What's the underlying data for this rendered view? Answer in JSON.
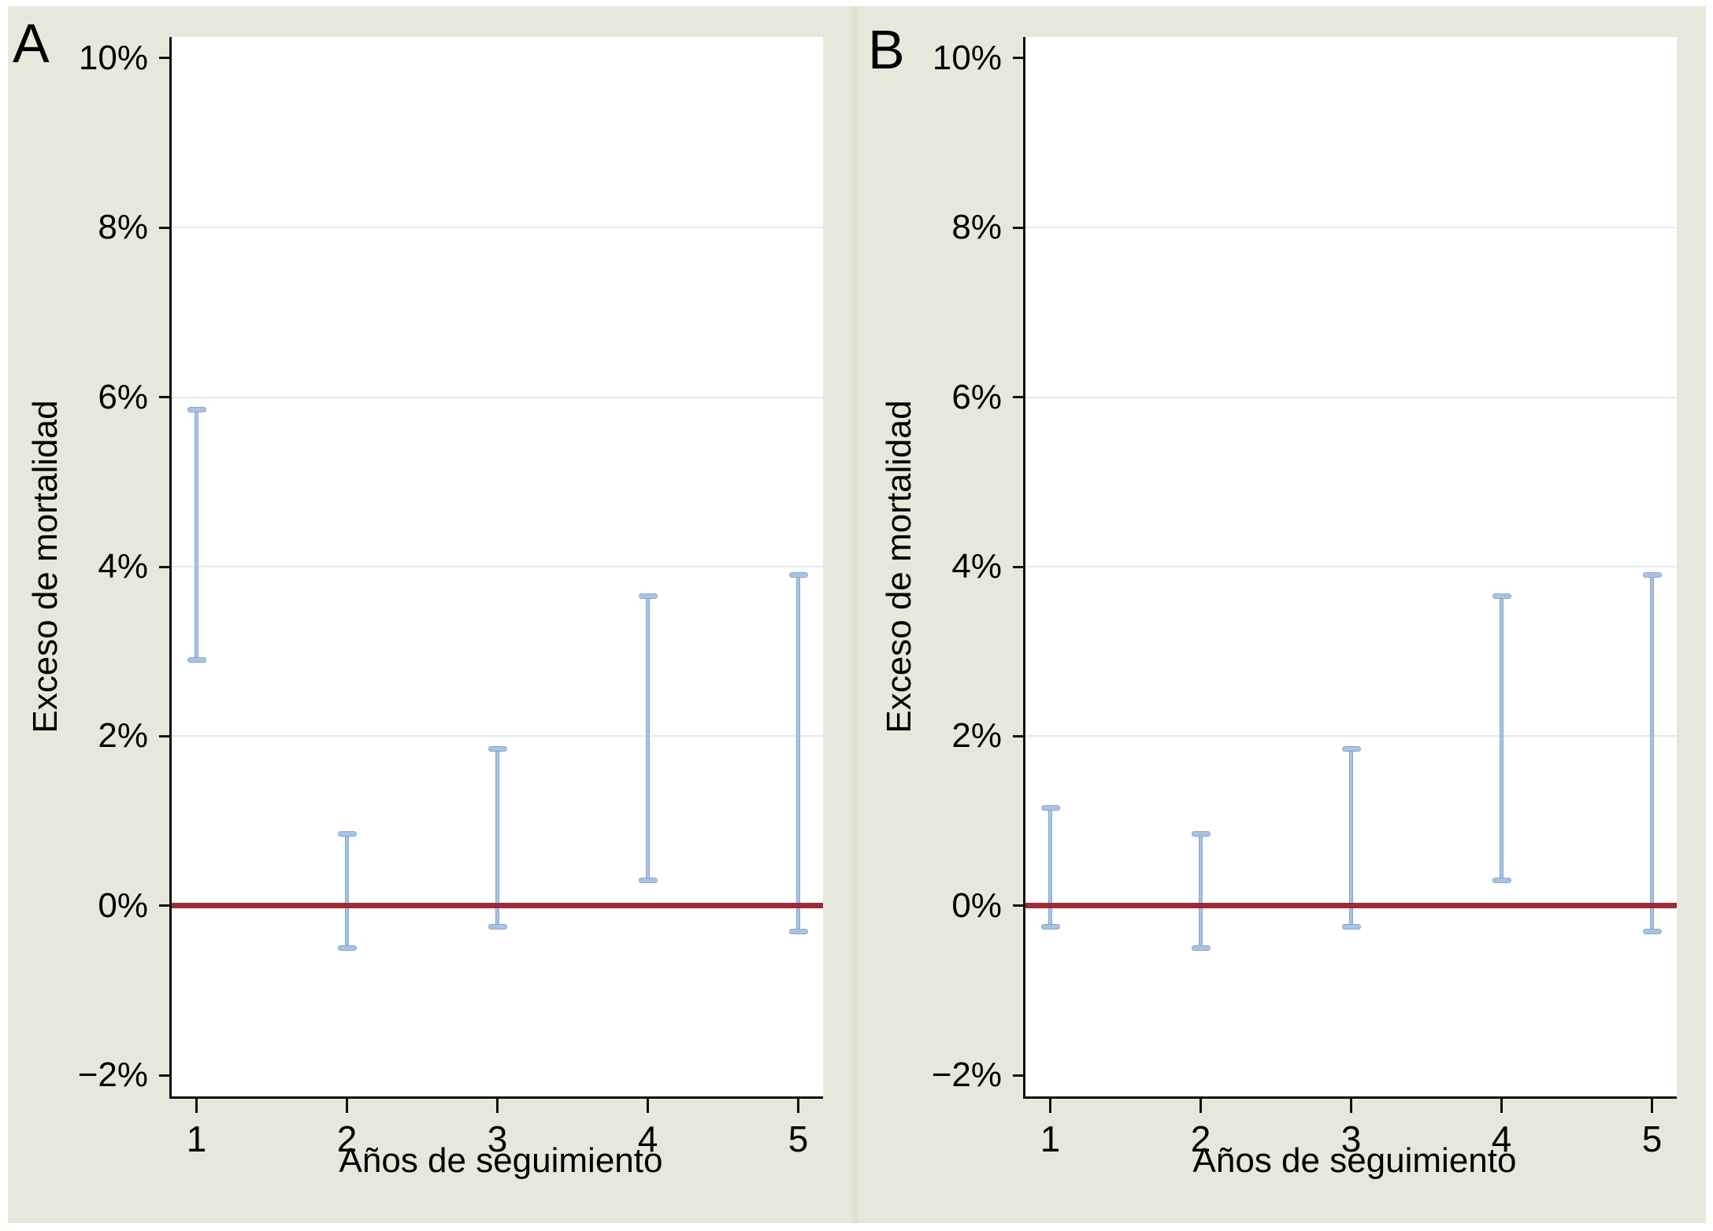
{
  "figure": {
    "background_color": "#e5e8da",
    "plot_background": "#ffffff",
    "divider_color": "#dde1cd",
    "grid_color": "#e1ebf1",
    "axis_color": "#111111",
    "error_bar_color": "#aac3e2",
    "error_bar_edge_color": "#87a7d0",
    "reference_line_color": "#9b2c3a"
  },
  "chart_data": [
    {
      "type": "errorbar",
      "panel_label": "A",
      "xlabel": "Años de seguimiento",
      "ylabel": "Exceso de mortalidad",
      "x": [
        1,
        2,
        3,
        4,
        5
      ],
      "xtick_labels": [
        "1",
        "2",
        "3",
        "4",
        "5"
      ],
      "intervals": [
        {
          "x": 1,
          "low": 2.9,
          "high": 5.85
        },
        {
          "x": 2,
          "low": -0.5,
          "high": 0.85
        },
        {
          "x": 3,
          "low": -0.25,
          "high": 1.85
        },
        {
          "x": 4,
          "low": 0.3,
          "high": 3.65
        },
        {
          "x": 5,
          "low": -0.3,
          "high": 3.9
        }
      ],
      "ytick_values": [
        10,
        8,
        6,
        4,
        2,
        0,
        -2
      ],
      "ytick_labels": [
        "10%",
        "8%",
        "6%",
        "4%",
        "2%",
        "0%",
        "−2%"
      ],
      "grid_values": [
        8,
        6,
        4,
        2
      ],
      "ylim": [
        -2.25,
        10.25
      ],
      "reference_line_y": 0,
      "legend": "none",
      "grid": "horizontal"
    },
    {
      "type": "errorbar",
      "panel_label": "B",
      "xlabel": "Años de seguimiento",
      "ylabel": "Exceso de mortalidad",
      "x": [
        1,
        2,
        3,
        4,
        5
      ],
      "xtick_labels": [
        "1",
        "2",
        "3",
        "4",
        "5"
      ],
      "intervals": [
        {
          "x": 1,
          "low": -0.25,
          "high": 1.15
        },
        {
          "x": 2,
          "low": -0.5,
          "high": 0.85
        },
        {
          "x": 3,
          "low": -0.25,
          "high": 1.85
        },
        {
          "x": 4,
          "low": 0.3,
          "high": 3.65
        },
        {
          "x": 5,
          "low": -0.3,
          "high": 3.9
        }
      ],
      "ytick_values": [
        10,
        8,
        6,
        4,
        2,
        0,
        -2
      ],
      "ytick_labels": [
        "10%",
        "8%",
        "6%",
        "4%",
        "2%",
        "0%",
        "−2%"
      ],
      "grid_values": [
        8,
        6,
        4,
        2
      ],
      "ylim": [
        -2.25,
        10.25
      ],
      "reference_line_y": 0,
      "legend": "none",
      "grid": "horizontal"
    }
  ]
}
